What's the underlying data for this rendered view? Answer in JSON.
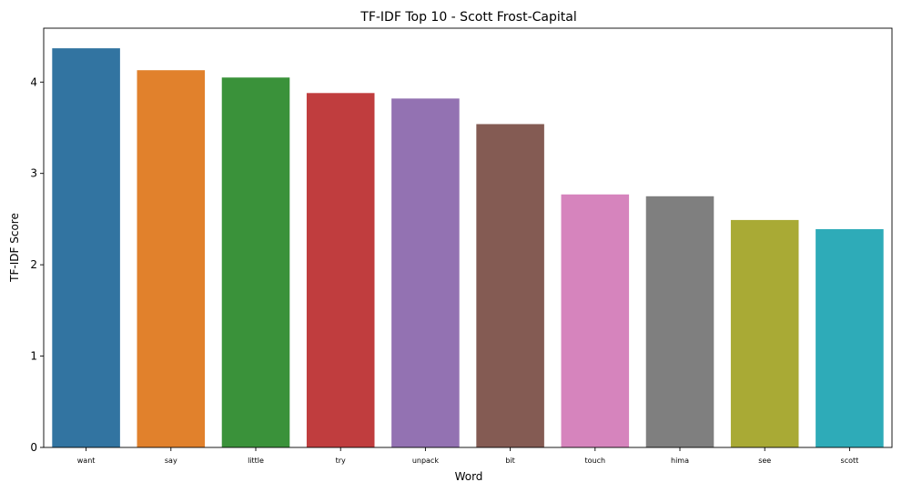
{
  "chart_data": {
    "type": "bar",
    "title": "TF-IDF Top 10 - Scott Frost-Capital",
    "xlabel": "Word",
    "ylabel": "TF-IDF Score",
    "categories": [
      "want",
      "say",
      "little",
      "try",
      "unpack",
      "bit",
      "touch",
      "hima",
      "see",
      "scott"
    ],
    "values": [
      4.37,
      4.13,
      4.05,
      3.88,
      3.82,
      3.54,
      2.77,
      2.75,
      2.49,
      2.39
    ],
    "colors": [
      "#3274a1",
      "#e1812c",
      "#3a923a",
      "#c03d3e",
      "#9372b2",
      "#845b53",
      "#d684bd",
      "#7f7f7f",
      "#a9aa35",
      "#2eabb8"
    ],
    "ylim": [
      0,
      4.59
    ],
    "yticks": [
      0,
      1,
      2,
      3,
      4
    ],
    "grid": false,
    "legend": "none"
  }
}
